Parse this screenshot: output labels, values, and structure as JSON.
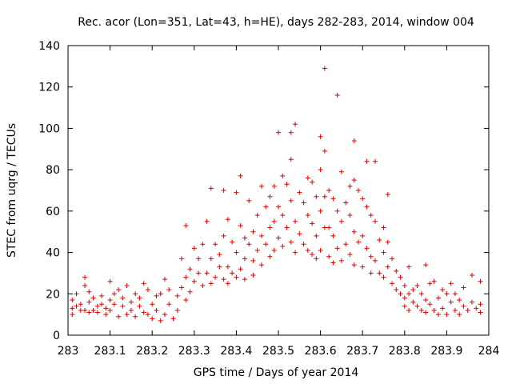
{
  "chart_data": {
    "type": "scatter",
    "title": "Rec. acor (Lon=351, Lat=43, h=HE), days 282-283, 2014, window 004",
    "xlabel": "GPS time / Days of year 2014",
    "ylabel": "STEC from uqrg / TECUs",
    "xlim": [
      283,
      284
    ],
    "ylim": [
      0,
      140
    ],
    "xticks": [
      283,
      283.1,
      283.2,
      283.3,
      283.4,
      283.5,
      283.6,
      283.7,
      283.8,
      283.9,
      284
    ],
    "xtick_labels": [
      "283",
      "283.1",
      "283.2",
      "283.3",
      "283.4",
      "283.5",
      "283.6",
      "283.7",
      "283.8",
      "283.9",
      "284"
    ],
    "yticks": [
      0,
      20,
      40,
      60,
      80,
      100,
      120,
      140
    ],
    "ytick_labels": [
      "0",
      "20",
      "40",
      "60",
      "80",
      "100",
      "120",
      "140"
    ],
    "marker": "+",
    "color": "#dd0000",
    "grid": false,
    "series": [
      {
        "name": "STEC",
        "points": [
          [
            283.01,
            17
          ],
          [
            283.01,
            13
          ],
          [
            283.01,
            10
          ],
          [
            283.02,
            14
          ],
          [
            283.02,
            20
          ],
          [
            283.03,
            12
          ],
          [
            283.03,
            15
          ],
          [
            283.04,
            24
          ],
          [
            283.04,
            28
          ],
          [
            283.04,
            12
          ],
          [
            283.05,
            21
          ],
          [
            283.05,
            16
          ],
          [
            283.05,
            11
          ],
          [
            283.06,
            12
          ],
          [
            283.06,
            18
          ],
          [
            283.07,
            14
          ],
          [
            283.07,
            11
          ],
          [
            283.08,
            15
          ],
          [
            283.08,
            19
          ],
          [
            283.09,
            13
          ],
          [
            283.09,
            10
          ],
          [
            283.1,
            26
          ],
          [
            283.1,
            17
          ],
          [
            283.1,
            12
          ],
          [
            283.11,
            20
          ],
          [
            283.11,
            15
          ],
          [
            283.12,
            22
          ],
          [
            283.12,
            9
          ],
          [
            283.13,
            14
          ],
          [
            283.13,
            18
          ],
          [
            283.14,
            24
          ],
          [
            283.14,
            10
          ],
          [
            283.15,
            16
          ],
          [
            283.15,
            12
          ],
          [
            283.16,
            20
          ],
          [
            283.16,
            9
          ],
          [
            283.17,
            18
          ],
          [
            283.17,
            14
          ],
          [
            283.18,
            11
          ],
          [
            283.18,
            25
          ],
          [
            283.19,
            22
          ],
          [
            283.19,
            10
          ],
          [
            283.2,
            15
          ],
          [
            283.2,
            8
          ],
          [
            283.21,
            19
          ],
          [
            283.21,
            12
          ],
          [
            283.22,
            7
          ],
          [
            283.22,
            20
          ],
          [
            283.23,
            27
          ],
          [
            283.23,
            10
          ],
          [
            283.24,
            15
          ],
          [
            283.24,
            22
          ],
          [
            283.25,
            8
          ],
          [
            283.26,
            19
          ],
          [
            283.26,
            12
          ],
          [
            283.27,
            37
          ],
          [
            283.27,
            23
          ],
          [
            283.28,
            53
          ],
          [
            283.28,
            28
          ],
          [
            283.28,
            17
          ],
          [
            283.29,
            32
          ],
          [
            283.29,
            21
          ],
          [
            283.3,
            26
          ],
          [
            283.3,
            42
          ],
          [
            283.31,
            30
          ],
          [
            283.31,
            37
          ],
          [
            283.32,
            24
          ],
          [
            283.32,
            44
          ],
          [
            283.33,
            55
          ],
          [
            283.33,
            30
          ],
          [
            283.34,
            71
          ],
          [
            283.34,
            37
          ],
          [
            283.34,
            25
          ],
          [
            283.35,
            44
          ],
          [
            283.35,
            28
          ],
          [
            283.36,
            33
          ],
          [
            283.36,
            39
          ],
          [
            283.37,
            70
          ],
          [
            283.37,
            48
          ],
          [
            283.37,
            27
          ],
          [
            283.38,
            56
          ],
          [
            283.38,
            33
          ],
          [
            283.38,
            25
          ],
          [
            283.39,
            45
          ],
          [
            283.39,
            30
          ],
          [
            283.4,
            69
          ],
          [
            283.4,
            40
          ],
          [
            283.4,
            28
          ],
          [
            283.41,
            77
          ],
          [
            283.41,
            53
          ],
          [
            283.41,
            32
          ],
          [
            283.42,
            47
          ],
          [
            283.42,
            37
          ],
          [
            283.42,
            27
          ],
          [
            283.43,
            65
          ],
          [
            283.43,
            44
          ],
          [
            283.44,
            50
          ],
          [
            283.44,
            36
          ],
          [
            283.44,
            29
          ],
          [
            283.45,
            58
          ],
          [
            283.45,
            41
          ],
          [
            283.46,
            72
          ],
          [
            283.46,
            48
          ],
          [
            283.46,
            34
          ],
          [
            283.47,
            62
          ],
          [
            283.47,
            44
          ],
          [
            283.48,
            67
          ],
          [
            283.48,
            52
          ],
          [
            283.48,
            38
          ],
          [
            283.49,
            72
          ],
          [
            283.49,
            55
          ],
          [
            283.49,
            41
          ],
          [
            283.5,
            98
          ],
          [
            283.5,
            62
          ],
          [
            283.5,
            47
          ],
          [
            283.51,
            77
          ],
          [
            283.51,
            58
          ],
          [
            283.51,
            43
          ],
          [
            283.52,
            73
          ],
          [
            283.52,
            52
          ],
          [
            283.53,
            98
          ],
          [
            283.53,
            85
          ],
          [
            283.53,
            65
          ],
          [
            283.53,
            45
          ],
          [
            283.54,
            102
          ],
          [
            283.54,
            55
          ],
          [
            283.54,
            40
          ],
          [
            283.55,
            69
          ],
          [
            283.55,
            49
          ],
          [
            283.56,
            64
          ],
          [
            283.56,
            44
          ],
          [
            283.57,
            76
          ],
          [
            283.57,
            58
          ],
          [
            283.57,
            41
          ],
          [
            283.58,
            74
          ],
          [
            283.58,
            54
          ],
          [
            283.58,
            39
          ],
          [
            283.59,
            67
          ],
          [
            283.59,
            48
          ],
          [
            283.59,
            37
          ],
          [
            283.6,
            96
          ],
          [
            283.6,
            80
          ],
          [
            283.6,
            60
          ],
          [
            283.6,
            41
          ],
          [
            283.61,
            129
          ],
          [
            283.61,
            89
          ],
          [
            283.61,
            67
          ],
          [
            283.61,
            52
          ],
          [
            283.62,
            70
          ],
          [
            283.62,
            52
          ],
          [
            283.62,
            38
          ],
          [
            283.63,
            66
          ],
          [
            283.63,
            48
          ],
          [
            283.63,
            35
          ],
          [
            283.64,
            116
          ],
          [
            283.64,
            60
          ],
          [
            283.64,
            42
          ],
          [
            283.65,
            79
          ],
          [
            283.65,
            55
          ],
          [
            283.65,
            36
          ],
          [
            283.66,
            64
          ],
          [
            283.66,
            44
          ],
          [
            283.67,
            72
          ],
          [
            283.67,
            58
          ],
          [
            283.67,
            39
          ],
          [
            283.68,
            94
          ],
          [
            283.68,
            75
          ],
          [
            283.68,
            50
          ],
          [
            283.68,
            34
          ],
          [
            283.69,
            70
          ],
          [
            283.69,
            45
          ],
          [
            283.7,
            66
          ],
          [
            283.7,
            48
          ],
          [
            283.7,
            33
          ],
          [
            283.71,
            84
          ],
          [
            283.71,
            62
          ],
          [
            283.71,
            42
          ],
          [
            283.72,
            58
          ],
          [
            283.72,
            38
          ],
          [
            283.72,
            30
          ],
          [
            283.73,
            84
          ],
          [
            283.73,
            55
          ],
          [
            283.73,
            36
          ],
          [
            283.74,
            46
          ],
          [
            283.74,
            30
          ],
          [
            283.75,
            52
          ],
          [
            283.75,
            40
          ],
          [
            283.75,
            28
          ],
          [
            283.76,
            68
          ],
          [
            283.76,
            45
          ],
          [
            283.76,
            33
          ],
          [
            283.77,
            37
          ],
          [
            283.77,
            25
          ],
          [
            283.78,
            31
          ],
          [
            283.78,
            22
          ],
          [
            283.79,
            28
          ],
          [
            283.79,
            20
          ],
          [
            283.8,
            24
          ],
          [
            283.8,
            18
          ],
          [
            283.8,
            14
          ],
          [
            283.81,
            33
          ],
          [
            283.81,
            20
          ],
          [
            283.81,
            12
          ],
          [
            283.82,
            22
          ],
          [
            283.82,
            16
          ],
          [
            283.83,
            24
          ],
          [
            283.83,
            14
          ],
          [
            283.84,
            20
          ],
          [
            283.84,
            12
          ],
          [
            283.85,
            34
          ],
          [
            283.85,
            17
          ],
          [
            283.85,
            11
          ],
          [
            283.86,
            25
          ],
          [
            283.86,
            15
          ],
          [
            283.87,
            26
          ],
          [
            283.87,
            12
          ],
          [
            283.88,
            18
          ],
          [
            283.88,
            10
          ],
          [
            283.89,
            22
          ],
          [
            283.89,
            13
          ],
          [
            283.9,
            20
          ],
          [
            283.9,
            10
          ],
          [
            283.91,
            25
          ],
          [
            283.91,
            16
          ],
          [
            283.92,
            20
          ],
          [
            283.92,
            12
          ],
          [
            283.93,
            17
          ],
          [
            283.93,
            10
          ],
          [
            283.94,
            23
          ],
          [
            283.94,
            14
          ],
          [
            283.95,
            12
          ],
          [
            283.96,
            29
          ],
          [
            283.96,
            16
          ],
          [
            283.97,
            13
          ],
          [
            283.98,
            26
          ],
          [
            283.98,
            15
          ],
          [
            283.98,
            11
          ]
        ]
      }
    ]
  }
}
